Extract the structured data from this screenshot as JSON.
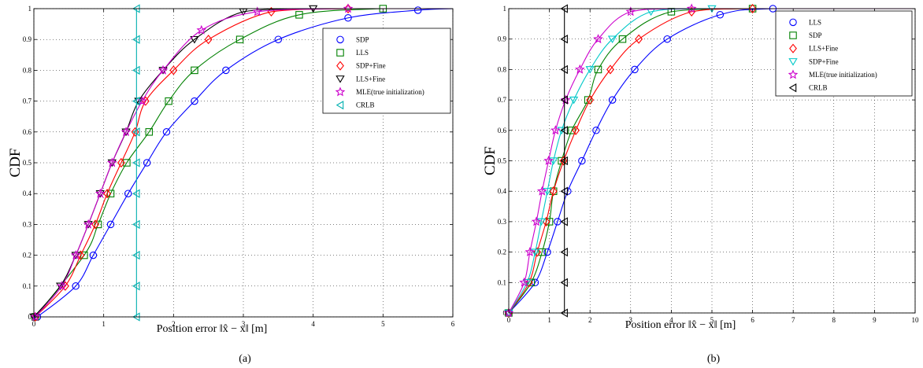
{
  "chart_data": [
    {
      "type": "line",
      "panel_label": "(a)",
      "xlabel": "Position error ‖x̂ − x‖ [m]",
      "ylabel": "CDF",
      "xlim": [
        0,
        6
      ],
      "ylim": [
        0,
        1
      ],
      "x_ticks": [
        "0",
        "1",
        "2",
        "3",
        "4",
        "5",
        "6"
      ],
      "y_ticks": [
        "0",
        "0.1",
        "0.2",
        "0.3",
        "0.4",
        "0.5",
        "0.6",
        "0.7",
        "0.8",
        "0.9",
        "1"
      ],
      "grid": true,
      "legend_position": "top-right",
      "series": [
        {
          "name": "SDP",
          "color": "#0000ff",
          "marker": "circle",
          "points": [
            [
              0.05,
              0
            ],
            [
              0.6,
              0.1
            ],
            [
              0.85,
              0.2
            ],
            [
              1.1,
              0.3
            ],
            [
              1.35,
              0.4
            ],
            [
              1.62,
              0.5
            ],
            [
              1.9,
              0.6
            ],
            [
              2.3,
              0.7
            ],
            [
              2.75,
              0.8
            ],
            [
              3.5,
              0.9
            ],
            [
              4.5,
              0.97
            ],
            [
              5.5,
              0.995
            ],
            [
              6,
              1
            ]
          ]
        },
        {
          "name": "LLS",
          "color": "#008000",
          "marker": "square",
          "points": [
            [
              0.02,
              0
            ],
            [
              0.72,
              0.2
            ],
            [
              0.92,
              0.3
            ],
            [
              1.1,
              0.4
            ],
            [
              1.33,
              0.5
            ],
            [
              1.65,
              0.6
            ],
            [
              1.93,
              0.7
            ],
            [
              2.3,
              0.8
            ],
            [
              2.95,
              0.9
            ],
            [
              3.8,
              0.98
            ],
            [
              5,
              1
            ],
            [
              6,
              1
            ]
          ]
        },
        {
          "name": "SDP+Fine",
          "color": "#ff0000",
          "marker": "diamond",
          "points": [
            [
              0.02,
              0
            ],
            [
              0.45,
              0.1
            ],
            [
              0.67,
              0.2
            ],
            [
              0.88,
              0.3
            ],
            [
              1.05,
              0.4
            ],
            [
              1.25,
              0.5
            ],
            [
              1.45,
              0.6
            ],
            [
              1.6,
              0.7
            ],
            [
              2.0,
              0.8
            ],
            [
              2.5,
              0.9
            ],
            [
              3.4,
              0.99
            ],
            [
              4.5,
              1
            ],
            [
              6,
              1
            ]
          ]
        },
        {
          "name": "LLS+Fine",
          "color": "#000000",
          "marker": "triangle-down",
          "points": [
            [
              0,
              0
            ],
            [
              0.38,
              0.1
            ],
            [
              0.6,
              0.2
            ],
            [
              0.78,
              0.3
            ],
            [
              0.95,
              0.4
            ],
            [
              1.12,
              0.5
            ],
            [
              1.32,
              0.6
            ],
            [
              1.5,
              0.7
            ],
            [
              1.85,
              0.8
            ],
            [
              2.3,
              0.9
            ],
            [
              3.0,
              0.99
            ],
            [
              4,
              1
            ],
            [
              6,
              1
            ]
          ]
        },
        {
          "name": "MLE(true initialization)",
          "color": "#cc00cc",
          "marker": "star",
          "points": [
            [
              0.02,
              0
            ],
            [
              0.4,
              0.1
            ],
            [
              0.6,
              0.2
            ],
            [
              0.78,
              0.3
            ],
            [
              0.95,
              0.4
            ],
            [
              1.12,
              0.5
            ],
            [
              1.32,
              0.6
            ],
            [
              1.55,
              0.7
            ],
            [
              1.85,
              0.8
            ],
            [
              2.4,
              0.93
            ],
            [
              3.2,
              0.99
            ],
            [
              4.5,
              1
            ],
            [
              6,
              1
            ]
          ]
        },
        {
          "name": "CRLB",
          "color": "#00b0b0",
          "marker": "triangle-left",
          "points": [
            [
              1.47,
              0
            ],
            [
              1.47,
              0.1
            ],
            [
              1.47,
              0.2
            ],
            [
              1.47,
              0.3
            ],
            [
              1.47,
              0.4
            ],
            [
              1.47,
              0.5
            ],
            [
              1.47,
              0.6
            ],
            [
              1.47,
              0.7
            ],
            [
              1.47,
              0.8
            ],
            [
              1.47,
              0.9
            ],
            [
              1.47,
              1
            ]
          ]
        }
      ]
    },
    {
      "type": "line",
      "panel_label": "(b)",
      "xlabel": "Position error ‖x̂ − x‖ [m]",
      "ylabel": "CDF",
      "xlim": [
        0,
        10
      ],
      "ylim": [
        0,
        1
      ],
      "x_ticks": [
        "0",
        "1",
        "2",
        "3",
        "4",
        "5",
        "6",
        "7",
        "8",
        "9",
        "10"
      ],
      "y_ticks": [
        "0",
        "0.1",
        "0.2",
        "0.3",
        "0.4",
        "0.5",
        "0.6",
        "0.7",
        "0.8",
        "0.9",
        "1"
      ],
      "grid": true,
      "legend_position": "top-right",
      "series": [
        {
          "name": "LLS",
          "color": "#0000ff",
          "marker": "circle",
          "points": [
            [
              0,
              0
            ],
            [
              0.65,
              0.1
            ],
            [
              0.95,
              0.2
            ],
            [
              1.2,
              0.3
            ],
            [
              1.45,
              0.4
            ],
            [
              1.8,
              0.5
            ],
            [
              2.15,
              0.6
            ],
            [
              2.55,
              0.7
            ],
            [
              3.1,
              0.8
            ],
            [
              3.9,
              0.9
            ],
            [
              5.2,
              0.98
            ],
            [
              6.5,
              1
            ],
            [
              10,
              1
            ]
          ]
        },
        {
          "name": "SDP",
          "color": "#008000",
          "marker": "square",
          "points": [
            [
              0,
              0
            ],
            [
              0.55,
              0.1
            ],
            [
              0.82,
              0.2
            ],
            [
              1.0,
              0.3
            ],
            [
              1.1,
              0.4
            ],
            [
              1.3,
              0.5
            ],
            [
              1.55,
              0.6
            ],
            [
              1.95,
              0.7
            ],
            [
              2.2,
              0.8
            ],
            [
              2.8,
              0.9
            ],
            [
              4.0,
              0.99
            ],
            [
              6,
              1
            ],
            [
              10,
              1
            ]
          ]
        },
        {
          "name": "LLS+Fine",
          "color": "#ff0000",
          "marker": "diamond",
          "points": [
            [
              0,
              0
            ],
            [
              0.5,
              0.1
            ],
            [
              0.7,
              0.2
            ],
            [
              0.92,
              0.3
            ],
            [
              1.1,
              0.4
            ],
            [
              1.35,
              0.5
            ],
            [
              1.65,
              0.6
            ],
            [
              2.0,
              0.7
            ],
            [
              2.5,
              0.8
            ],
            [
              3.2,
              0.9
            ],
            [
              4.5,
              0.99
            ],
            [
              6,
              1
            ],
            [
              10,
              1
            ]
          ]
        },
        {
          "name": "SDP+Fine",
          "color": "#00c8c8",
          "marker": "triangle-down",
          "points": [
            [
              0,
              0
            ],
            [
              0.45,
              0.1
            ],
            [
              0.65,
              0.2
            ],
            [
              0.8,
              0.3
            ],
            [
              0.95,
              0.4
            ],
            [
              1.1,
              0.5
            ],
            [
              1.3,
              0.6
            ],
            [
              1.6,
              0.7
            ],
            [
              2.0,
              0.8
            ],
            [
              2.55,
              0.9
            ],
            [
              3.5,
              0.99
            ],
            [
              5,
              1
            ],
            [
              10,
              1
            ]
          ]
        },
        {
          "name": "MLE(true initialization)",
          "color": "#cc00cc",
          "marker": "star",
          "points": [
            [
              0,
              0
            ],
            [
              0.38,
              0.1
            ],
            [
              0.52,
              0.2
            ],
            [
              0.68,
              0.3
            ],
            [
              0.82,
              0.4
            ],
            [
              0.98,
              0.5
            ],
            [
              1.15,
              0.6
            ],
            [
              1.4,
              0.7
            ],
            [
              1.75,
              0.8
            ],
            [
              2.2,
              0.9
            ],
            [
              3.0,
              0.99
            ],
            [
              4.5,
              1
            ],
            [
              10,
              1
            ]
          ]
        },
        {
          "name": "CRLB",
          "color": "#000000",
          "marker": "triangle-left",
          "points": [
            [
              1.37,
              0
            ],
            [
              1.37,
              0.1
            ],
            [
              1.37,
              0.2
            ],
            [
              1.37,
              0.3
            ],
            [
              1.37,
              0.4
            ],
            [
              1.37,
              0.5
            ],
            [
              1.37,
              0.6
            ],
            [
              1.37,
              0.7
            ],
            [
              1.37,
              0.8
            ],
            [
              1.37,
              0.9
            ],
            [
              1.37,
              1
            ]
          ]
        }
      ]
    }
  ]
}
